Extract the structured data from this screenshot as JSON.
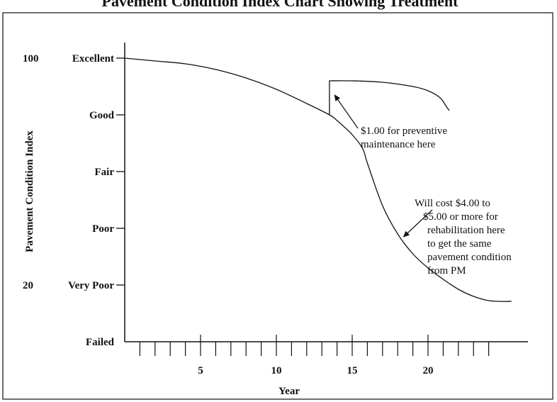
{
  "header": {
    "cropped_title": "Pavement Condition Index Chart Showing Treatment"
  },
  "chart_data": {
    "type": "line",
    "title": "",
    "xlabel": "Year",
    "ylabel": "Pavement Condition Index",
    "xlim": [
      0,
      26
    ],
    "ylim": [
      0,
      100
    ],
    "xticks": [
      5,
      10,
      15,
      20
    ],
    "y_numeric_labels": [
      {
        "value": 100,
        "label": "100"
      },
      {
        "value": 20,
        "label": "20"
      }
    ],
    "y_category_labels": [
      {
        "value": 100,
        "label": "Excellent"
      },
      {
        "value": 80,
        "label": "Good"
      },
      {
        "value": 60,
        "label": "Fair"
      },
      {
        "value": 40,
        "label": "Poor"
      },
      {
        "value": 20,
        "label": "Very Poor"
      },
      {
        "value": 0,
        "label": "Failed"
      }
    ],
    "series": [
      {
        "x": [
          0,
          2,
          4,
          6,
          8,
          10,
          12,
          13.5,
          14,
          15,
          15.7,
          16,
          17,
          18,
          19,
          20,
          21,
          22,
          23,
          24,
          25,
          25.5
        ],
        "y": [
          100,
          99,
          98,
          96,
          93,
          89,
          84,
          80,
          78,
          73,
          68,
          63,
          48,
          38,
          31,
          26,
          22,
          18.5,
          16,
          14.5,
          14.2,
          14.3
        ]
      },
      {
        "x": [
          13.5,
          13.5,
          15,
          17,
          19,
          20,
          20.8,
          21.2,
          21.4
        ],
        "y": [
          80,
          92,
          92,
          91.5,
          90,
          88.5,
          86,
          83,
          81.5
        ]
      }
    ],
    "annotations": [
      {
        "lines": [
          "$1.00 for preventive",
          "maintenance here"
        ],
        "arrow_to": [
          13.7,
          88
        ]
      },
      {
        "lines": [
          "Will cost $4.00 to",
          "$5.00 or more for",
          "rehabilitation here",
          "to get the same",
          "pavement condition",
          "from PM"
        ],
        "arrow_to": [
          18.2,
          36
        ]
      }
    ],
    "grid": false,
    "legend": "none"
  }
}
